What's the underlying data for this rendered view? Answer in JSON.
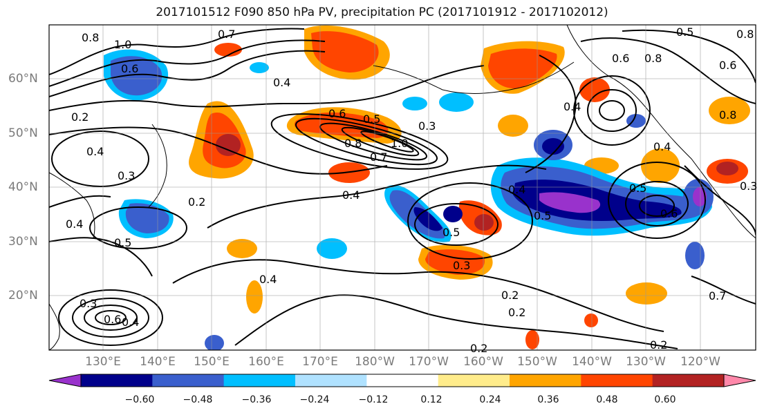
{
  "title": "2017101512 F090 850 hPa PV, precipitation PC (2017101912 - 2017102012)",
  "lat_labels": [
    "60°N",
    "50°N",
    "40°N",
    "30°N",
    "20°N"
  ],
  "lon_labels": [
    "130°E",
    "140°E",
    "150°E",
    "160°E",
    "170°E",
    "180°W",
    "170°W",
    "160°W",
    "150°W",
    "140°W",
    "130°W",
    "120°W"
  ],
  "colorbar": {
    "colors": [
      "#9932cc",
      "#00008b",
      "#3a5fcd",
      "#00bfff",
      "#b0e2ff",
      "#ffffff",
      "#ffec8b",
      "#ffa500",
      "#ff4500",
      "#b22222",
      "#ff88aa"
    ],
    "ticks": [
      "−0.60",
      "−0.48",
      "−0.36",
      "−0.24",
      "−0.12",
      "0.12",
      "0.24",
      "0.36",
      "0.48",
      "0.60"
    ]
  },
  "contour_labels": [
    {
      "text": "0.8"
    },
    {
      "text": "1.0"
    },
    {
      "text": "0.7"
    },
    {
      "text": "0.6"
    },
    {
      "text": "0.4"
    },
    {
      "text": "0.2"
    },
    {
      "text": "0.4"
    },
    {
      "text": "0.3"
    },
    {
      "text": "0.5"
    },
    {
      "text": "0.4"
    },
    {
      "text": "0.6"
    },
    {
      "text": "0.5"
    },
    {
      "text": "0.3"
    },
    {
      "text": "0.8"
    },
    {
      "text": "0.7"
    },
    {
      "text": "1.0"
    },
    {
      "text": "0.4"
    },
    {
      "text": "0.2"
    },
    {
      "text": "0.5"
    },
    {
      "text": "0.4"
    },
    {
      "text": "0.3"
    },
    {
      "text": "0.4"
    },
    {
      "text": "0.3"
    },
    {
      "text": "0.6"
    },
    {
      "text": "0.4"
    },
    {
      "text": "0.2"
    },
    {
      "text": "0.2"
    },
    {
      "text": "0.2"
    },
    {
      "text": "0.2"
    },
    {
      "text": "0.4"
    },
    {
      "text": "0.6"
    },
    {
      "text": "0.8"
    },
    {
      "text": "0.5"
    },
    {
      "text": "0.6"
    },
    {
      "text": "0.5"
    },
    {
      "text": "0.8"
    },
    {
      "text": "0.4"
    },
    {
      "text": "0.5"
    },
    {
      "text": "0.6"
    },
    {
      "text": "0.3"
    },
    {
      "text": "0.7"
    },
    {
      "text": "0.8"
    }
  ]
}
